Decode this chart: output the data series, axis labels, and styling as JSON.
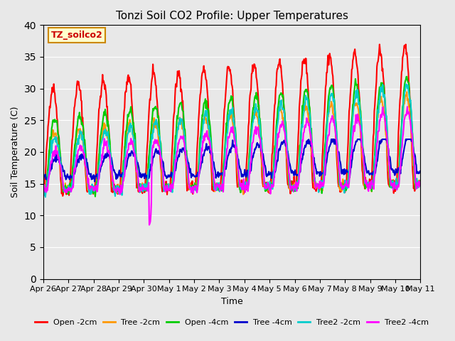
{
  "title": "Tonzi Soil CO2 Profile: Upper Temperatures",
  "xlabel": "Time",
  "ylabel": "Soil Temperature (C)",
  "ylim": [
    0,
    40
  ],
  "yticks": [
    0,
    5,
    10,
    15,
    20,
    25,
    30,
    35,
    40
  ],
  "xlim": [
    0,
    15
  ],
  "background_color": "#e8e8e8",
  "plot_bg_color": "#e8e8e8",
  "watermark_text": "TZ_soilco2",
  "watermark_bg": "#ffffcc",
  "watermark_border": "#cc8800",
  "series": [
    {
      "label": "Open -2cm",
      "color": "#ff0000",
      "lw": 1.5
    },
    {
      "label": "Tree -2cm",
      "color": "#ff9900",
      "lw": 1.5
    },
    {
      "label": "Open -4cm",
      "color": "#00cc00",
      "lw": 1.5
    },
    {
      "label": "Tree -4cm",
      "color": "#0000cc",
      "lw": 1.5
    },
    {
      "label": "Tree2 -2cm",
      "color": "#00cccc",
      "lw": 1.5
    },
    {
      "label": "Tree2 -4cm",
      "color": "#ff00ff",
      "lw": 1.5
    }
  ],
  "xtick_labels": [
    "Apr 26",
    "Apr 27",
    "Apr 28",
    "Apr 29",
    "Apr 30",
    "May 1",
    "May 2",
    "May 3",
    "May 4",
    "May 5",
    "May 6",
    "May 7",
    "May 8",
    "May 9",
    "May 10",
    "May 11"
  ],
  "xtick_positions": [
    0,
    1,
    2,
    3,
    4,
    5,
    6,
    7,
    8,
    9,
    10,
    11,
    12,
    13,
    14,
    15
  ]
}
